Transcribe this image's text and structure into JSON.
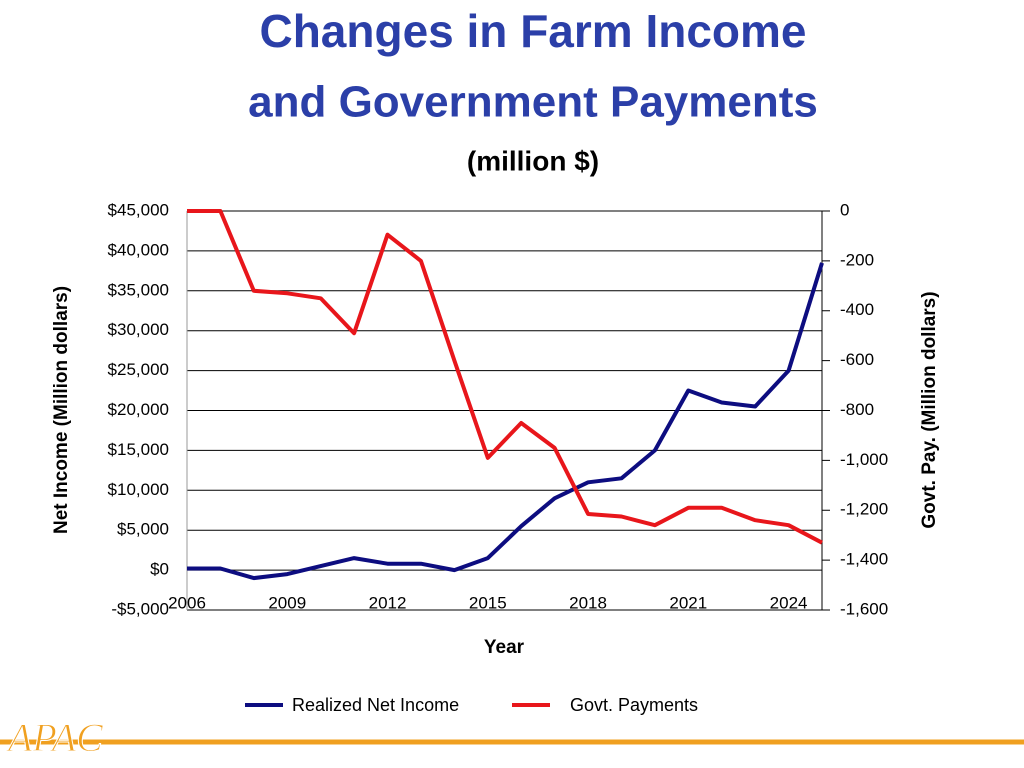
{
  "chart_data": {
    "type": "line",
    "title": "Changes in Farm Income",
    "title_line2": "and Government Payments",
    "subtitle": "(million $)",
    "x_label": "Year",
    "y_label": "Net Income (Million dollars)",
    "y2_label": "Govt. Pay. (Million dollars)",
    "x": [
      2006,
      2007,
      2008,
      2009,
      2010,
      2011,
      2012,
      2013,
      2014,
      2015,
      2016,
      2017,
      2018,
      2019,
      2020,
      2021,
      2022,
      2023,
      2024,
      2025
    ],
    "xlim": [
      2006,
      2025
    ],
    "xticks": [
      2006,
      2009,
      2012,
      2015,
      2018,
      2021,
      2024
    ],
    "ylim": [
      -5000,
      45000
    ],
    "yticks": [
      {
        "value": -5000,
        "label": "-$5,000"
      },
      {
        "value": 0,
        "label": "$0"
      },
      {
        "value": 5000,
        "label": "$5,000"
      },
      {
        "value": 10000,
        "label": "$10,000"
      },
      {
        "value": 15000,
        "label": "$15,000"
      },
      {
        "value": 20000,
        "label": "$20,000"
      },
      {
        "value": 25000,
        "label": "$25,000"
      },
      {
        "value": 30000,
        "label": "$30,000"
      },
      {
        "value": 35000,
        "label": "$35,000"
      },
      {
        "value": 40000,
        "label": "$40,000"
      },
      {
        "value": 45000,
        "label": "$45,000"
      }
    ],
    "y2lim": [
      -1600,
      0
    ],
    "y2ticks": [
      {
        "value": -1600,
        "label": "-1,600"
      },
      {
        "value": -1400,
        "label": "-1,400"
      },
      {
        "value": -1200,
        "label": "-1,200"
      },
      {
        "value": -1000,
        "label": "-1,000"
      },
      -800,
      -600,
      -400,
      -200,
      0
    ],
    "grid": true,
    "legend": "bottom",
    "series": [
      {
        "name": "Realized Net Income",
        "color": "#0d0d80",
        "values": [
          200,
          200,
          -1000,
          -500,
          500,
          1500,
          800,
          800,
          0,
          1500,
          5500,
          9000,
          11000,
          11500,
          15000,
          22500,
          21000,
          20500,
          25000,
          38500
        ]
      },
      {
        "name": "Govt. Payments",
        "color": "#e8161b",
        "axis": "y2",
        "values": [
          0,
          0,
          -320,
          -330,
          -350,
          -490,
          -95,
          -200,
          -600,
          -990,
          -850,
          -950,
          -1215,
          -1225,
          -1260,
          -1190,
          -1190,
          -1240,
          -1260,
          -1330
        ]
      }
    ],
    "logo": "APAC"
  }
}
